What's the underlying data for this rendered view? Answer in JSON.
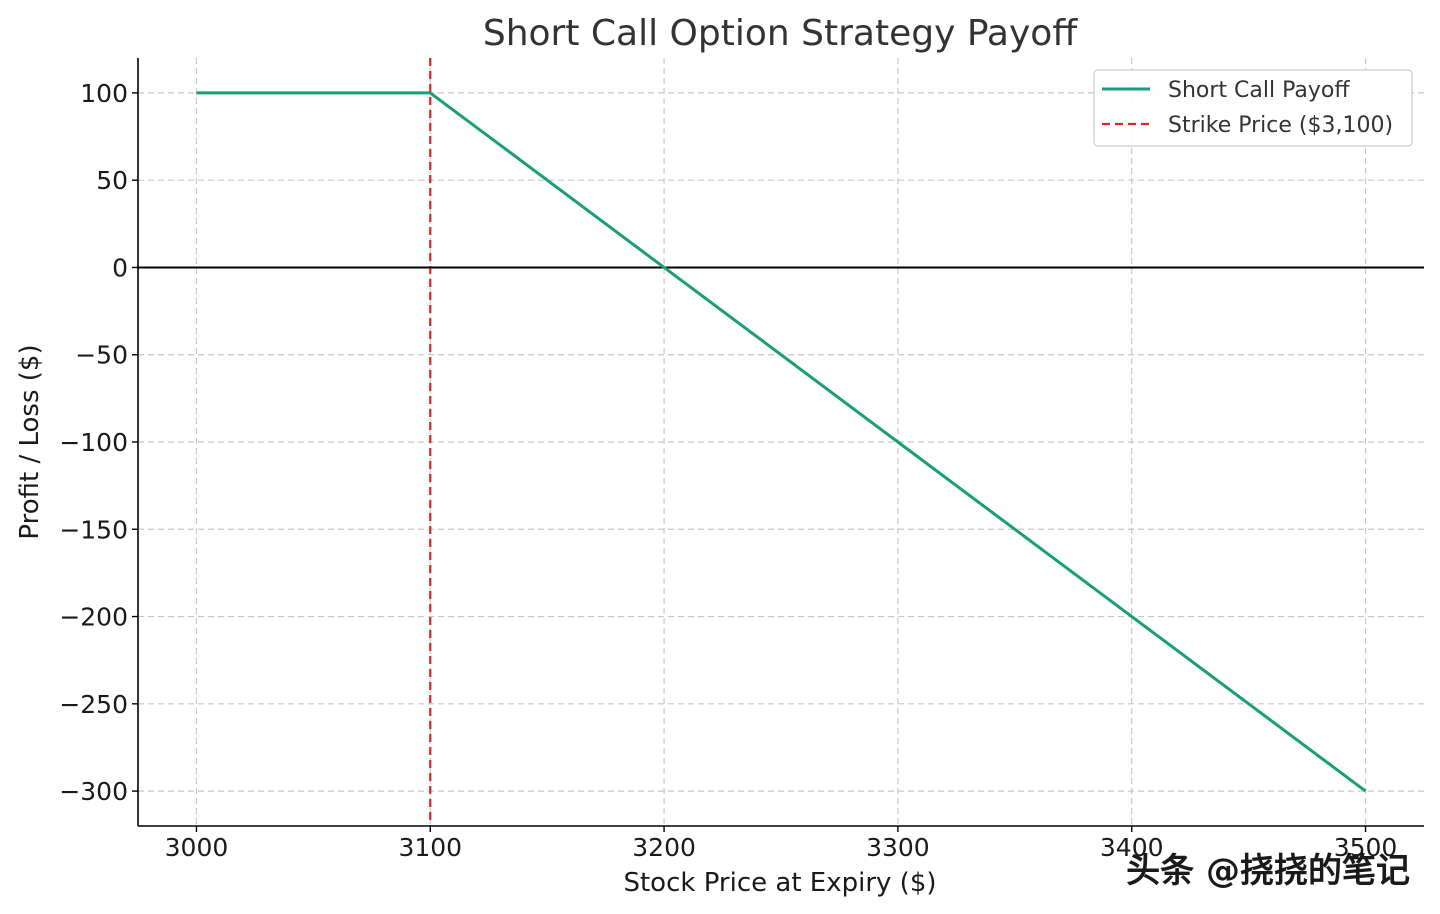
{
  "chart_data": {
    "type": "line",
    "title": "Short Call Option Strategy Payoff",
    "xlabel": "Stock Price at Expiry ($)",
    "ylabel": "Profit / Loss ($)",
    "xlim": [
      2975,
      3525
    ],
    "ylim": [
      -320,
      120
    ],
    "xticks": [
      3000,
      3100,
      3200,
      3300,
      3400,
      3500
    ],
    "yticks": [
      100,
      50,
      0,
      -50,
      -100,
      -150,
      -200,
      -250,
      -300
    ],
    "ytick_labels": [
      "100",
      "50",
      "0",
      "−50",
      "−100",
      "−150",
      "−200",
      "−250",
      "−300"
    ],
    "grid": true,
    "legend_position": "top-right",
    "series": [
      {
        "name": "Short Call Payoff",
        "color": "#1a9e77",
        "style": "solid",
        "x": [
          3000,
          3100,
          3200,
          3300,
          3400,
          3500
        ],
        "y": [
          100,
          100,
          0,
          -100,
          -200,
          -300
        ]
      }
    ],
    "reference_lines": [
      {
        "name": "Strike Price ($3,100)",
        "orientation": "vertical",
        "value": 3100,
        "color": "#d62728",
        "style": "dashed"
      },
      {
        "name": "",
        "orientation": "horizontal",
        "value": 0,
        "color": "#000000",
        "style": "solid"
      }
    ],
    "watermark": "头条 @挠挠的笔记"
  }
}
